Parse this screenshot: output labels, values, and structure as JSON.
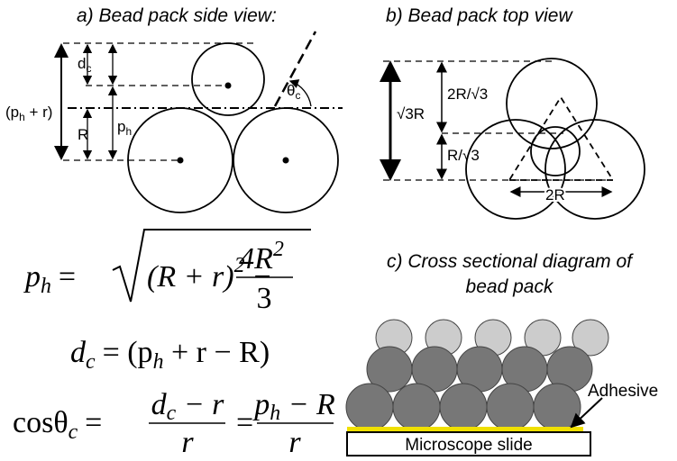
{
  "panel_a": {
    "title": "a) Bead pack side view:",
    "dc": [
      "d",
      "c"
    ],
    "phr": [
      "(p",
      "h",
      " + r)"
    ],
    "R": "R",
    "ph": [
      "p",
      "h"
    ],
    "theta": [
      "θ",
      "c"
    ]
  },
  "panel_b": {
    "title": "b) Bead pack top view",
    "labels": [
      "2R/√3",
      "√3R",
      "R/√3",
      "2R"
    ]
  },
  "panel_c": {
    "title": [
      "c) Cross sectional diagram of",
      "bead pack"
    ],
    "adhesive": "Adhesive",
    "slide": "Microscope slide"
  },
  "equations": [
    [
      "p",
      "h",
      "=",
      "(R + r)",
      "2",
      "−",
      "4R",
      "2",
      "3"
    ],
    [
      "d",
      "c",
      "= (p",
      "h",
      " + r − R)"
    ],
    [
      "cosθ",
      "c",
      "=",
      "d",
      "c",
      " − r",
      "r",
      "=",
      "p",
      "h",
      " − R",
      "r"
    ]
  ]
}
